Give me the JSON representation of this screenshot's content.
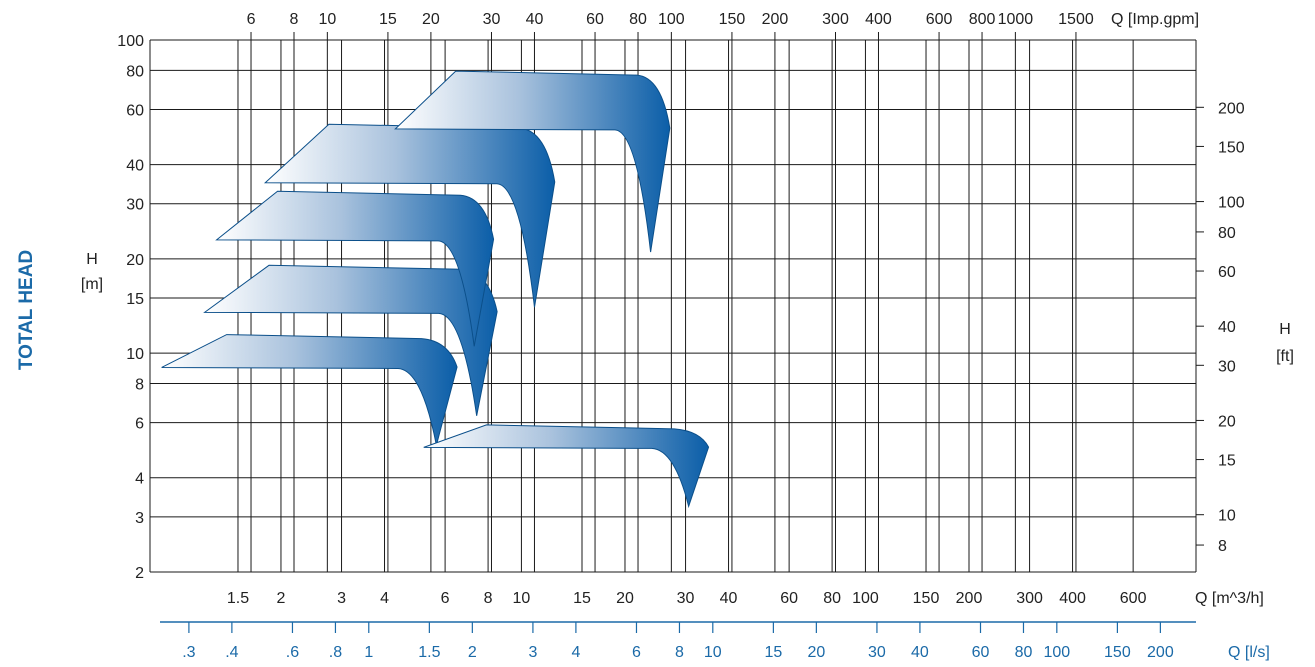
{
  "chart_data": {
    "type": "area",
    "title": "",
    "side_title": "TOTAL HEAD",
    "y_left_label": [
      "H",
      "[m]"
    ],
    "y_right_label": [
      "H",
      "[ft]"
    ],
    "x_top_label": "Q [Imp.gpm]",
    "x_bottom_label": "Q [m^3/h]",
    "x_lps_label": "Q [l/s]",
    "y_scale": "log",
    "x_scale": "log",
    "grid": true,
    "y_left_ticks": [
      "100",
      "80",
      "60",
      "40",
      "30",
      "20",
      "15",
      "10",
      "8",
      "6",
      "4",
      "3",
      "2"
    ],
    "y_left_values": [
      100,
      80,
      60,
      40,
      30,
      20,
      15,
      10,
      8,
      6,
      4,
      3,
      2
    ],
    "y_right_ticks": [
      "200",
      "150",
      "100",
      "80",
      "60",
      "40",
      "30",
      "20",
      "15",
      "10",
      "8"
    ],
    "y_right_values": [
      200,
      150,
      100,
      80,
      60,
      40,
      30,
      20,
      15,
      10,
      8
    ],
    "x_m3h_ticks": [
      "1.5",
      "2",
      "3",
      "4",
      "6",
      "8",
      "10",
      "15",
      "20",
      "30",
      "40",
      "60",
      "80",
      "100",
      "150",
      "200",
      "300",
      "400",
      "600"
    ],
    "x_m3h_values": [
      1.5,
      2,
      3,
      4,
      6,
      8,
      10,
      15,
      20,
      30,
      40,
      60,
      80,
      100,
      150,
      200,
      300,
      400,
      600
    ],
    "x_gpm_ticks": [
      "6",
      "8",
      "10",
      "15",
      "20",
      "30",
      "40",
      "60",
      "80",
      "100",
      "150",
      "200",
      "300",
      "400",
      "600",
      "800",
      "1000",
      "1500"
    ],
    "x_gpm_values": [
      6,
      8,
      10,
      15,
      20,
      30,
      40,
      60,
      80,
      100,
      150,
      200,
      300,
      400,
      600,
      800,
      1000,
      1500
    ],
    "x_lps_ticks": [
      ".3",
      ".4",
      ".6",
      ".8",
      "1",
      "1.5",
      "2",
      "3",
      "4",
      "6",
      "8",
      "10",
      "15",
      "20",
      "30",
      "40",
      "60",
      "80",
      "100",
      "150",
      "200"
    ],
    "x_lps_values": [
      0.3,
      0.4,
      0.6,
      0.8,
      1,
      1.5,
      2,
      3,
      4,
      6,
      8,
      10,
      15,
      20,
      30,
      40,
      60,
      80,
      100,
      150,
      200
    ],
    "colors": {
      "band_light": "#ffffff",
      "band_dark": "#0b5ea8",
      "band_edge": "#0b4f8a",
      "label_blue": "#1b6aa8"
    },
    "series": [
      {
        "q_start": 0.9,
        "q_end": 6.5,
        "h_top": 9,
        "h_bottom": 5.8
      },
      {
        "q_start": 1.2,
        "q_end": 8.5,
        "h_top": 13.5,
        "h_bottom": 7.2
      },
      {
        "q_start": 1.3,
        "q_end": 8.3,
        "h_top": 23,
        "h_bottom": 12
      },
      {
        "q_start": 1.8,
        "q_end": 12.5,
        "h_top": 35,
        "h_bottom": 16
      },
      {
        "q_start": 5.2,
        "q_end": 35,
        "h_top": 5,
        "h_bottom": 3.7
      },
      {
        "q_start": 4.3,
        "q_end": 27,
        "h_top": 52,
        "h_bottom": 24
      }
    ]
  }
}
